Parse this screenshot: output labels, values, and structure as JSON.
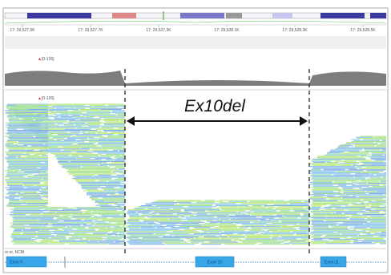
{
  "ruler": {
    "labels": [
      "17: 29,527.5K",
      "17: 29,527.7K",
      "17: 29,527.9K",
      "17: 29,528.1K",
      "17: 29,528.3K",
      "17: 29,528.5K"
    ]
  },
  "coverage": {
    "label": "[0-126]"
  },
  "alignment": {
    "label": "[0-126]"
  },
  "annotation": {
    "text": "Ex10del"
  },
  "genes": {
    "track_label": "m nt, NCBI",
    "exons": [
      "Exon 9",
      "Exon 10",
      "Exon 11"
    ]
  }
}
